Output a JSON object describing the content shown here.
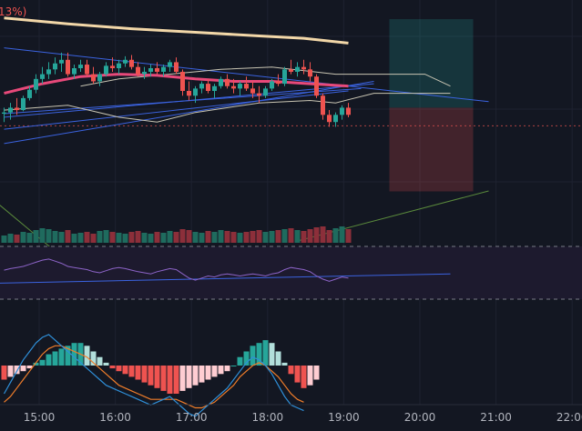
{
  "header": {
    "percent_label": "13%)"
  },
  "colors": {
    "background": "#131722",
    "grid": "#1e2230",
    "up": "#26a69a",
    "down": "#ef5350",
    "ma_fast": "#e8497a",
    "ma_slow": "#f2d7a8",
    "envelope": "#c9c5b3",
    "trend_line": "#3b63e0",
    "rsi_line": "#8d64c8",
    "rsi_band": "#1d1a2e",
    "macd_line": "#2f8fd8",
    "signal_line": "#f07d2a",
    "tp_zone": "rgba(38,166,154,0.22)",
    "sl_zone": "rgba(239,83,80,0.22)",
    "green_ray": "#5a8a3c",
    "axis_text": "#b2b5be"
  },
  "chart_data": {
    "type": "candlestick",
    "x_axis": {
      "tick_labels": [
        "15:00",
        "16:00",
        "17:00",
        "18:00",
        "19:00",
        "20:00",
        "21:00",
        "22:00"
      ]
    },
    "candles": [
      [
        0,
        95,
        100,
        88,
        96
      ],
      [
        1,
        96,
        104,
        90,
        100
      ],
      [
        2,
        100,
        108,
        94,
        98
      ],
      [
        3,
        98,
        110,
        97,
        108
      ],
      [
        4,
        108,
        118,
        106,
        115
      ],
      [
        5,
        115,
        128,
        112,
        124
      ],
      [
        6,
        124,
        134,
        120,
        128
      ],
      [
        7,
        128,
        138,
        124,
        132
      ],
      [
        8,
        132,
        142,
        128,
        137
      ],
      [
        9,
        137,
        146,
        130,
        140
      ],
      [
        10,
        140,
        146,
        126,
        128
      ],
      [
        11,
        128,
        136,
        124,
        133
      ],
      [
        12,
        133,
        140,
        130,
        136
      ],
      [
        13,
        136,
        140,
        126,
        128
      ],
      [
        14,
        128,
        134,
        120,
        122
      ],
      [
        15,
        122,
        130,
        118,
        128
      ],
      [
        16,
        128,
        138,
        126,
        135
      ],
      [
        17,
        135,
        142,
        130,
        133
      ],
      [
        18,
        133,
        140,
        128,
        137
      ],
      [
        19,
        137,
        143,
        134,
        140
      ],
      [
        20,
        140,
        144,
        132,
        134
      ],
      [
        21,
        134,
        138,
        126,
        128
      ],
      [
        22,
        128,
        134,
        124,
        130
      ],
      [
        23,
        130,
        136,
        126,
        133
      ],
      [
        24,
        133,
        138,
        128,
        130
      ],
      [
        25,
        130,
        136,
        126,
        134
      ],
      [
        26,
        134,
        140,
        130,
        138
      ],
      [
        27,
        138,
        142,
        128,
        130
      ],
      [
        28,
        130,
        132,
        110,
        114
      ],
      [
        29,
        114,
        122,
        106,
        110
      ],
      [
        30,
        110,
        118,
        104,
        116
      ],
      [
        31,
        116,
        122,
        112,
        120
      ],
      [
        32,
        120,
        124,
        112,
        114
      ],
      [
        33,
        114,
        120,
        108,
        118
      ],
      [
        34,
        118,
        126,
        116,
        124
      ],
      [
        35,
        124,
        128,
        116,
        118
      ],
      [
        36,
        118,
        124,
        112,
        116
      ],
      [
        37,
        116,
        122,
        110,
        120
      ],
      [
        38,
        120,
        126,
        114,
        116
      ],
      [
        39,
        116,
        122,
        108,
        112
      ],
      [
        40,
        112,
        118,
        104,
        110
      ],
      [
        41,
        110,
        118,
        108,
        116
      ],
      [
        42,
        116,
        124,
        114,
        122
      ],
      [
        43,
        122,
        128,
        118,
        120
      ],
      [
        44,
        120,
        134,
        118,
        132
      ],
      [
        45,
        132,
        140,
        128,
        130
      ],
      [
        46,
        130,
        138,
        126,
        134
      ],
      [
        47,
        134,
        140,
        128,
        132
      ],
      [
        48,
        132,
        138,
        122,
        126
      ],
      [
        49,
        126,
        128,
        108,
        110
      ],
      [
        50,
        110,
        112,
        90,
        94
      ],
      [
        51,
        94,
        98,
        84,
        88
      ],
      [
        52,
        88,
        96,
        84,
        94
      ],
      [
        53,
        94,
        102,
        90,
        100
      ],
      [
        54,
        100,
        104,
        92,
        94
      ]
    ],
    "ma_slow": [
      [
        0,
        175
      ],
      [
        10,
        170
      ],
      [
        20,
        166
      ],
      [
        30,
        163
      ],
      [
        40,
        160
      ],
      [
        47,
        158
      ],
      [
        54,
        154
      ]
    ],
    "ma_fast": [
      [
        0,
        112
      ],
      [
        6,
        120
      ],
      [
        12,
        126
      ],
      [
        18,
        128
      ],
      [
        24,
        127
      ],
      [
        30,
        124
      ],
      [
        36,
        122
      ],
      [
        42,
        122
      ],
      [
        48,
        120
      ],
      [
        54,
        118
      ]
    ],
    "envelope_upper": [
      [
        12,
        118
      ],
      [
        18,
        124
      ],
      [
        26,
        128
      ],
      [
        34,
        132
      ],
      [
        42,
        134
      ],
      [
        52,
        128
      ],
      [
        58,
        128
      ],
      [
        66,
        128
      ],
      [
        70,
        118
      ]
    ],
    "envelope_lower": [
      [
        0,
        98
      ],
      [
        10,
        102
      ],
      [
        18,
        92
      ],
      [
        24,
        88
      ],
      [
        30,
        96
      ],
      [
        40,
        104
      ],
      [
        48,
        106
      ],
      [
        52,
        104
      ],
      [
        58,
        112
      ],
      [
        66,
        112
      ],
      [
        70,
        112
      ]
    ],
    "trend_lines": [
      [
        [
          0,
          150
        ],
        [
          76,
          105
        ]
      ],
      [
        [
          0,
          95
        ],
        [
          56,
          116
        ]
      ],
      [
        [
          0,
          82
        ],
        [
          54,
          114
        ]
      ],
      [
        [
          0,
          70
        ],
        [
          58,
          122
        ]
      ],
      [
        [
          0,
          92
        ],
        [
          58,
          120
        ]
      ]
    ],
    "green_ray": [
      [
        -1,
        20
      ],
      [
        8,
        -20
      ]
    ],
    "green_ray_2": [
      [
        46,
        -20
      ],
      [
        76,
        30
      ]
    ],
    "position": {
      "entry": 100,
      "take_profit": 174,
      "stop_loss": 30,
      "x_start": 53,
      "x_end": 65
    },
    "volume": [
      8,
      10,
      9,
      12,
      11,
      14,
      16,
      15,
      13,
      12,
      14,
      10,
      11,
      12,
      10,
      13,
      14,
      12,
      11,
      10,
      12,
      13,
      11,
      10,
      12,
      11,
      13,
      12,
      15,
      14,
      12,
      11,
      13,
      12,
      14,
      13,
      12,
      11,
      12,
      13,
      14,
      12,
      13,
      14,
      15,
      16,
      14,
      13,
      15,
      17,
      18,
      14,
      16,
      18,
      15
    ],
    "rsi": [
      55,
      58,
      60,
      62,
      66,
      70,
      74,
      76,
      72,
      68,
      62,
      60,
      58,
      56,
      52,
      50,
      54,
      58,
      60,
      58,
      55,
      52,
      50,
      48,
      52,
      55,
      58,
      56,
      48,
      40,
      36,
      40,
      44,
      42,
      46,
      48,
      46,
      44,
      46,
      48,
      46,
      44,
      48,
      50,
      56,
      60,
      58,
      56,
      52,
      44,
      38,
      34,
      38,
      42,
      40
    ],
    "rsi_trend": [
      [
        -2,
        30
      ],
      [
        70,
        48
      ]
    ],
    "macd": [
      -20,
      -12,
      -4,
      4,
      10,
      16,
      20,
      22,
      18,
      14,
      10,
      6,
      2,
      -2,
      -6,
      -10,
      -14,
      -16,
      -18,
      -20,
      -22,
      -24,
      -26,
      -28,
      -26,
      -24,
      -22,
      -26,
      -30,
      -34,
      -36,
      -32,
      -28,
      -24,
      -20,
      -16,
      -10,
      -4,
      2,
      6,
      4,
      0,
      -6,
      -14,
      -22,
      -28,
      -30,
      -32
    ],
    "signal": [
      -26,
      -22,
      -16,
      -10,
      -4,
      2,
      8,
      12,
      14,
      14,
      12,
      10,
      8,
      6,
      2,
      -2,
      -6,
      -10,
      -14,
      -16,
      -18,
      -20,
      -22,
      -24,
      -24,
      -24,
      -24,
      -24,
      -26,
      -28,
      -30,
      -30,
      -28,
      -26,
      -22,
      -18,
      -14,
      -8,
      -4,
      0,
      2,
      0,
      -4,
      -8,
      -14,
      -20,
      -24,
      -26
    ],
    "histogram": [
      -10,
      -8,
      -6,
      -4,
      -2,
      2,
      4,
      8,
      10,
      12,
      14,
      16,
      16,
      14,
      10,
      6,
      2,
      -2,
      -4,
      -6,
      -8,
      -10,
      -12,
      -14,
      -16,
      -18,
      -20,
      -20,
      -18,
      -16,
      -14,
      -12,
      -10,
      -8,
      -6,
      -4,
      0,
      6,
      10,
      14,
      16,
      18,
      16,
      10,
      2,
      -6,
      -12,
      -16,
      -14,
      -10
    ]
  }
}
